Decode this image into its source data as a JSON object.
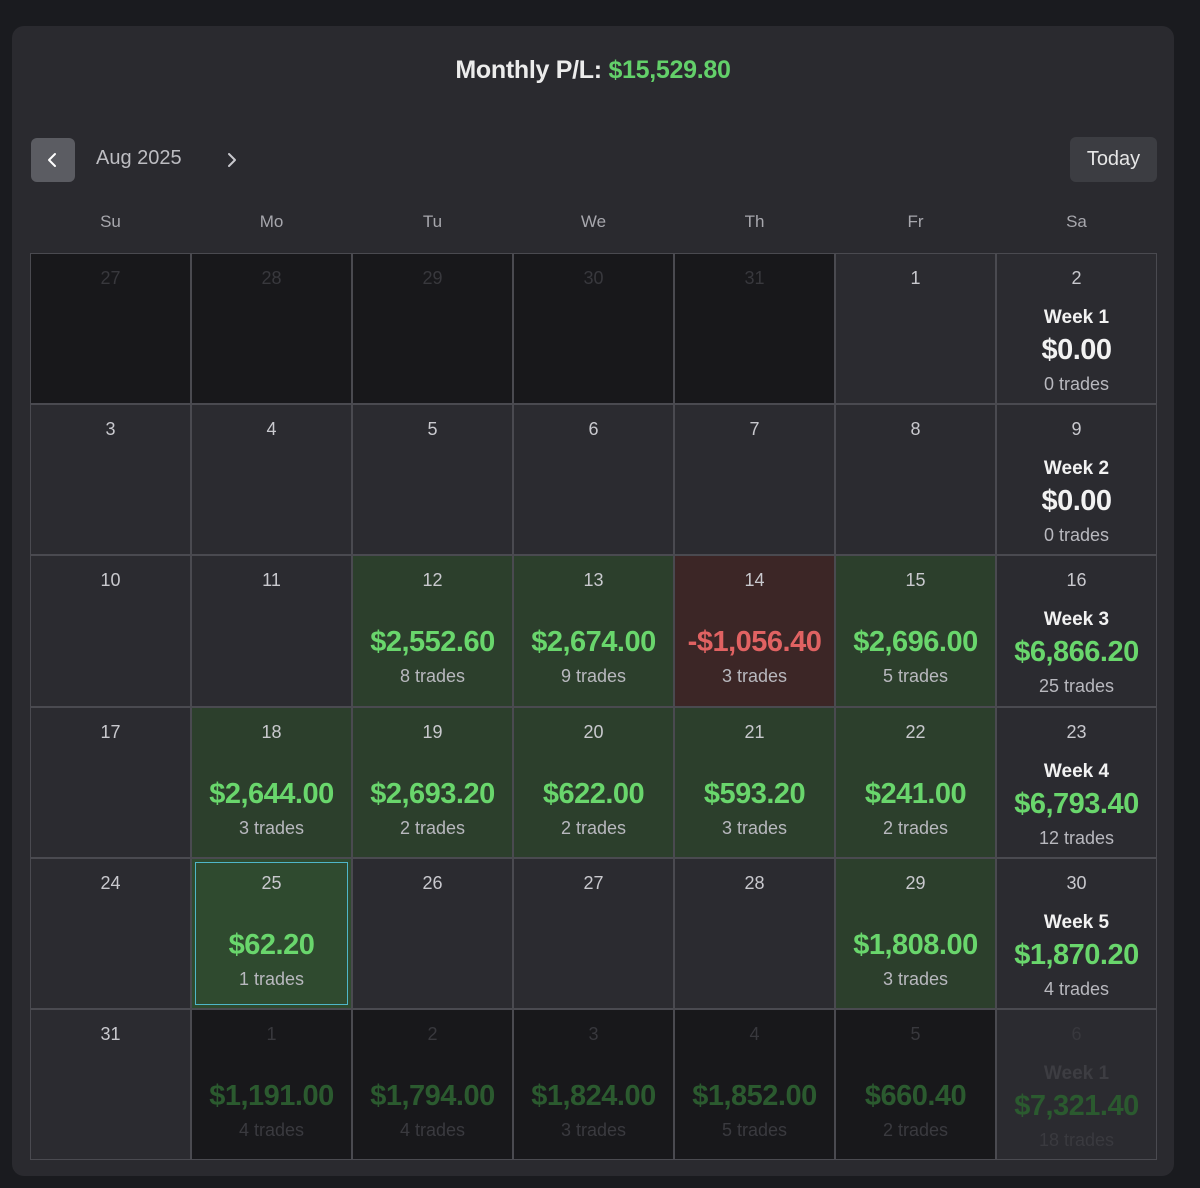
{
  "header": {
    "monthly_label": "Monthly P/L:",
    "monthly_value": "$15,529.80"
  },
  "nav": {
    "month_label": "Aug 2025",
    "today_label": "Today",
    "prev_icon": "chevron-left-icon",
    "next_icon": "chevron-right-icon"
  },
  "weekdays": [
    "Su",
    "Mo",
    "Tu",
    "We",
    "Th",
    "Fr",
    "Sa"
  ],
  "colors": {
    "positive": "#69d66c",
    "negative": "#e06262",
    "positive_bg": "#2c3f2c",
    "negative_bg": "#3c2626",
    "selected_border": "#4fb6c8"
  },
  "weeks": [
    {
      "days": [
        {
          "date": "27",
          "other": true
        },
        {
          "date": "28",
          "other": true
        },
        {
          "date": "29",
          "other": true
        },
        {
          "date": "30",
          "other": true
        },
        {
          "date": "31",
          "other": true
        },
        {
          "date": "1"
        }
      ],
      "summary": {
        "date": "2",
        "label": "Week 1",
        "amount": "$0.00",
        "trades": "0 trades",
        "zero": true
      }
    },
    {
      "days": [
        {
          "date": "3"
        },
        {
          "date": "4"
        },
        {
          "date": "5"
        },
        {
          "date": "6"
        },
        {
          "date": "7"
        },
        {
          "date": "8"
        }
      ],
      "summary": {
        "date": "9",
        "label": "Week 2",
        "amount": "$0.00",
        "trades": "0 trades",
        "zero": true
      }
    },
    {
      "days": [
        {
          "date": "10"
        },
        {
          "date": "11"
        },
        {
          "date": "12",
          "amount": "$2,552.60",
          "trades": "8 trades",
          "status": "pos"
        },
        {
          "date": "13",
          "amount": "$2,674.00",
          "trades": "9 trades",
          "status": "pos"
        },
        {
          "date": "14",
          "amount": "-$1,056.40",
          "trades": "3 trades",
          "status": "neg"
        },
        {
          "date": "15",
          "amount": "$2,696.00",
          "trades": "5 trades",
          "status": "pos"
        }
      ],
      "summary": {
        "date": "16",
        "label": "Week 3",
        "amount": "$6,866.20",
        "trades": "25 trades"
      }
    },
    {
      "days": [
        {
          "date": "17"
        },
        {
          "date": "18",
          "amount": "$2,644.00",
          "trades": "3 trades",
          "status": "pos"
        },
        {
          "date": "19",
          "amount": "$2,693.20",
          "trades": "2 trades",
          "status": "pos"
        },
        {
          "date": "20",
          "amount": "$622.00",
          "trades": "2 trades",
          "status": "pos"
        },
        {
          "date": "21",
          "amount": "$593.20",
          "trades": "3 trades",
          "status": "pos"
        },
        {
          "date": "22",
          "amount": "$241.00",
          "trades": "2 trades",
          "status": "pos"
        }
      ],
      "summary": {
        "date": "23",
        "label": "Week 4",
        "amount": "$6,793.40",
        "trades": "12 trades"
      }
    },
    {
      "days": [
        {
          "date": "24"
        },
        {
          "date": "25",
          "amount": "$62.20",
          "trades": "1 trades",
          "status": "pos",
          "selected": true
        },
        {
          "date": "26"
        },
        {
          "date": "27"
        },
        {
          "date": "28"
        },
        {
          "date": "29",
          "amount": "$1,808.00",
          "trades": "3 trades",
          "status": "pos"
        }
      ],
      "summary": {
        "date": "30",
        "label": "Week 5",
        "amount": "$1,870.20",
        "trades": "4 trades"
      }
    },
    {
      "days": [
        {
          "date": "31"
        },
        {
          "date": "1",
          "amount": "$1,191.00",
          "trades": "4 trades",
          "other": true
        },
        {
          "date": "2",
          "amount": "$1,794.00",
          "trades": "4 trades",
          "other": true
        },
        {
          "date": "3",
          "amount": "$1,824.00",
          "trades": "3 trades",
          "other": true
        },
        {
          "date": "4",
          "amount": "$1,852.00",
          "trades": "5 trades",
          "other": true
        },
        {
          "date": "5",
          "amount": "$660.40",
          "trades": "2 trades",
          "other": true
        }
      ],
      "summary": {
        "date": "6",
        "label": "Week 1",
        "amount": "$7,321.40",
        "trades": "18 trades",
        "other": true
      }
    }
  ]
}
